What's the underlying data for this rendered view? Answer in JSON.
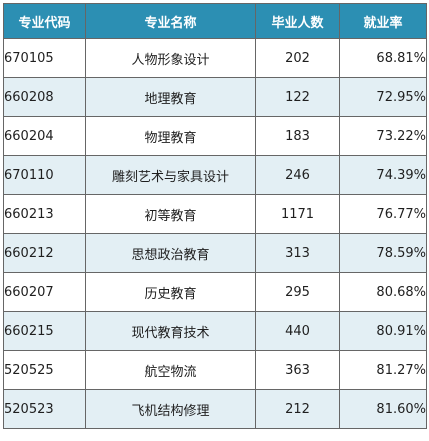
{
  "table": {
    "headers": [
      "专业代码",
      "专业名称",
      "毕业人数",
      "就业率"
    ],
    "rows": [
      {
        "code": "670105",
        "name": "人物形象设计",
        "graduates": "202",
        "rate": "68.81%"
      },
      {
        "code": "660208",
        "name": "地理教育",
        "graduates": "122",
        "rate": "72.95%"
      },
      {
        "code": "660204",
        "name": "物理教育",
        "graduates": "183",
        "rate": "73.22%"
      },
      {
        "code": "670110",
        "name": "雕刻艺术与家具设计",
        "graduates": "246",
        "rate": "74.39%"
      },
      {
        "code": "660213",
        "name": "初等教育",
        "graduates": "1171",
        "rate": "76.77%"
      },
      {
        "code": "660212",
        "name": "思想政治教育",
        "graduates": "313",
        "rate": "78.59%"
      },
      {
        "code": "660207",
        "name": "历史教育",
        "graduates": "295",
        "rate": "80.68%"
      },
      {
        "code": "660215",
        "name": "现代教育技术",
        "graduates": "440",
        "rate": "80.91%"
      },
      {
        "code": "520525",
        "name": "航空物流",
        "graduates": "363",
        "rate": "81.27%"
      },
      {
        "code": "520523",
        "name": "飞机结构修理",
        "graduates": "212",
        "rate": "81.60%"
      }
    ]
  },
  "colors": {
    "header_bg": "#2c8fb3",
    "header_text": "#ffffff",
    "alt_row_bg": "#e3eff4",
    "border": "#666666"
  }
}
